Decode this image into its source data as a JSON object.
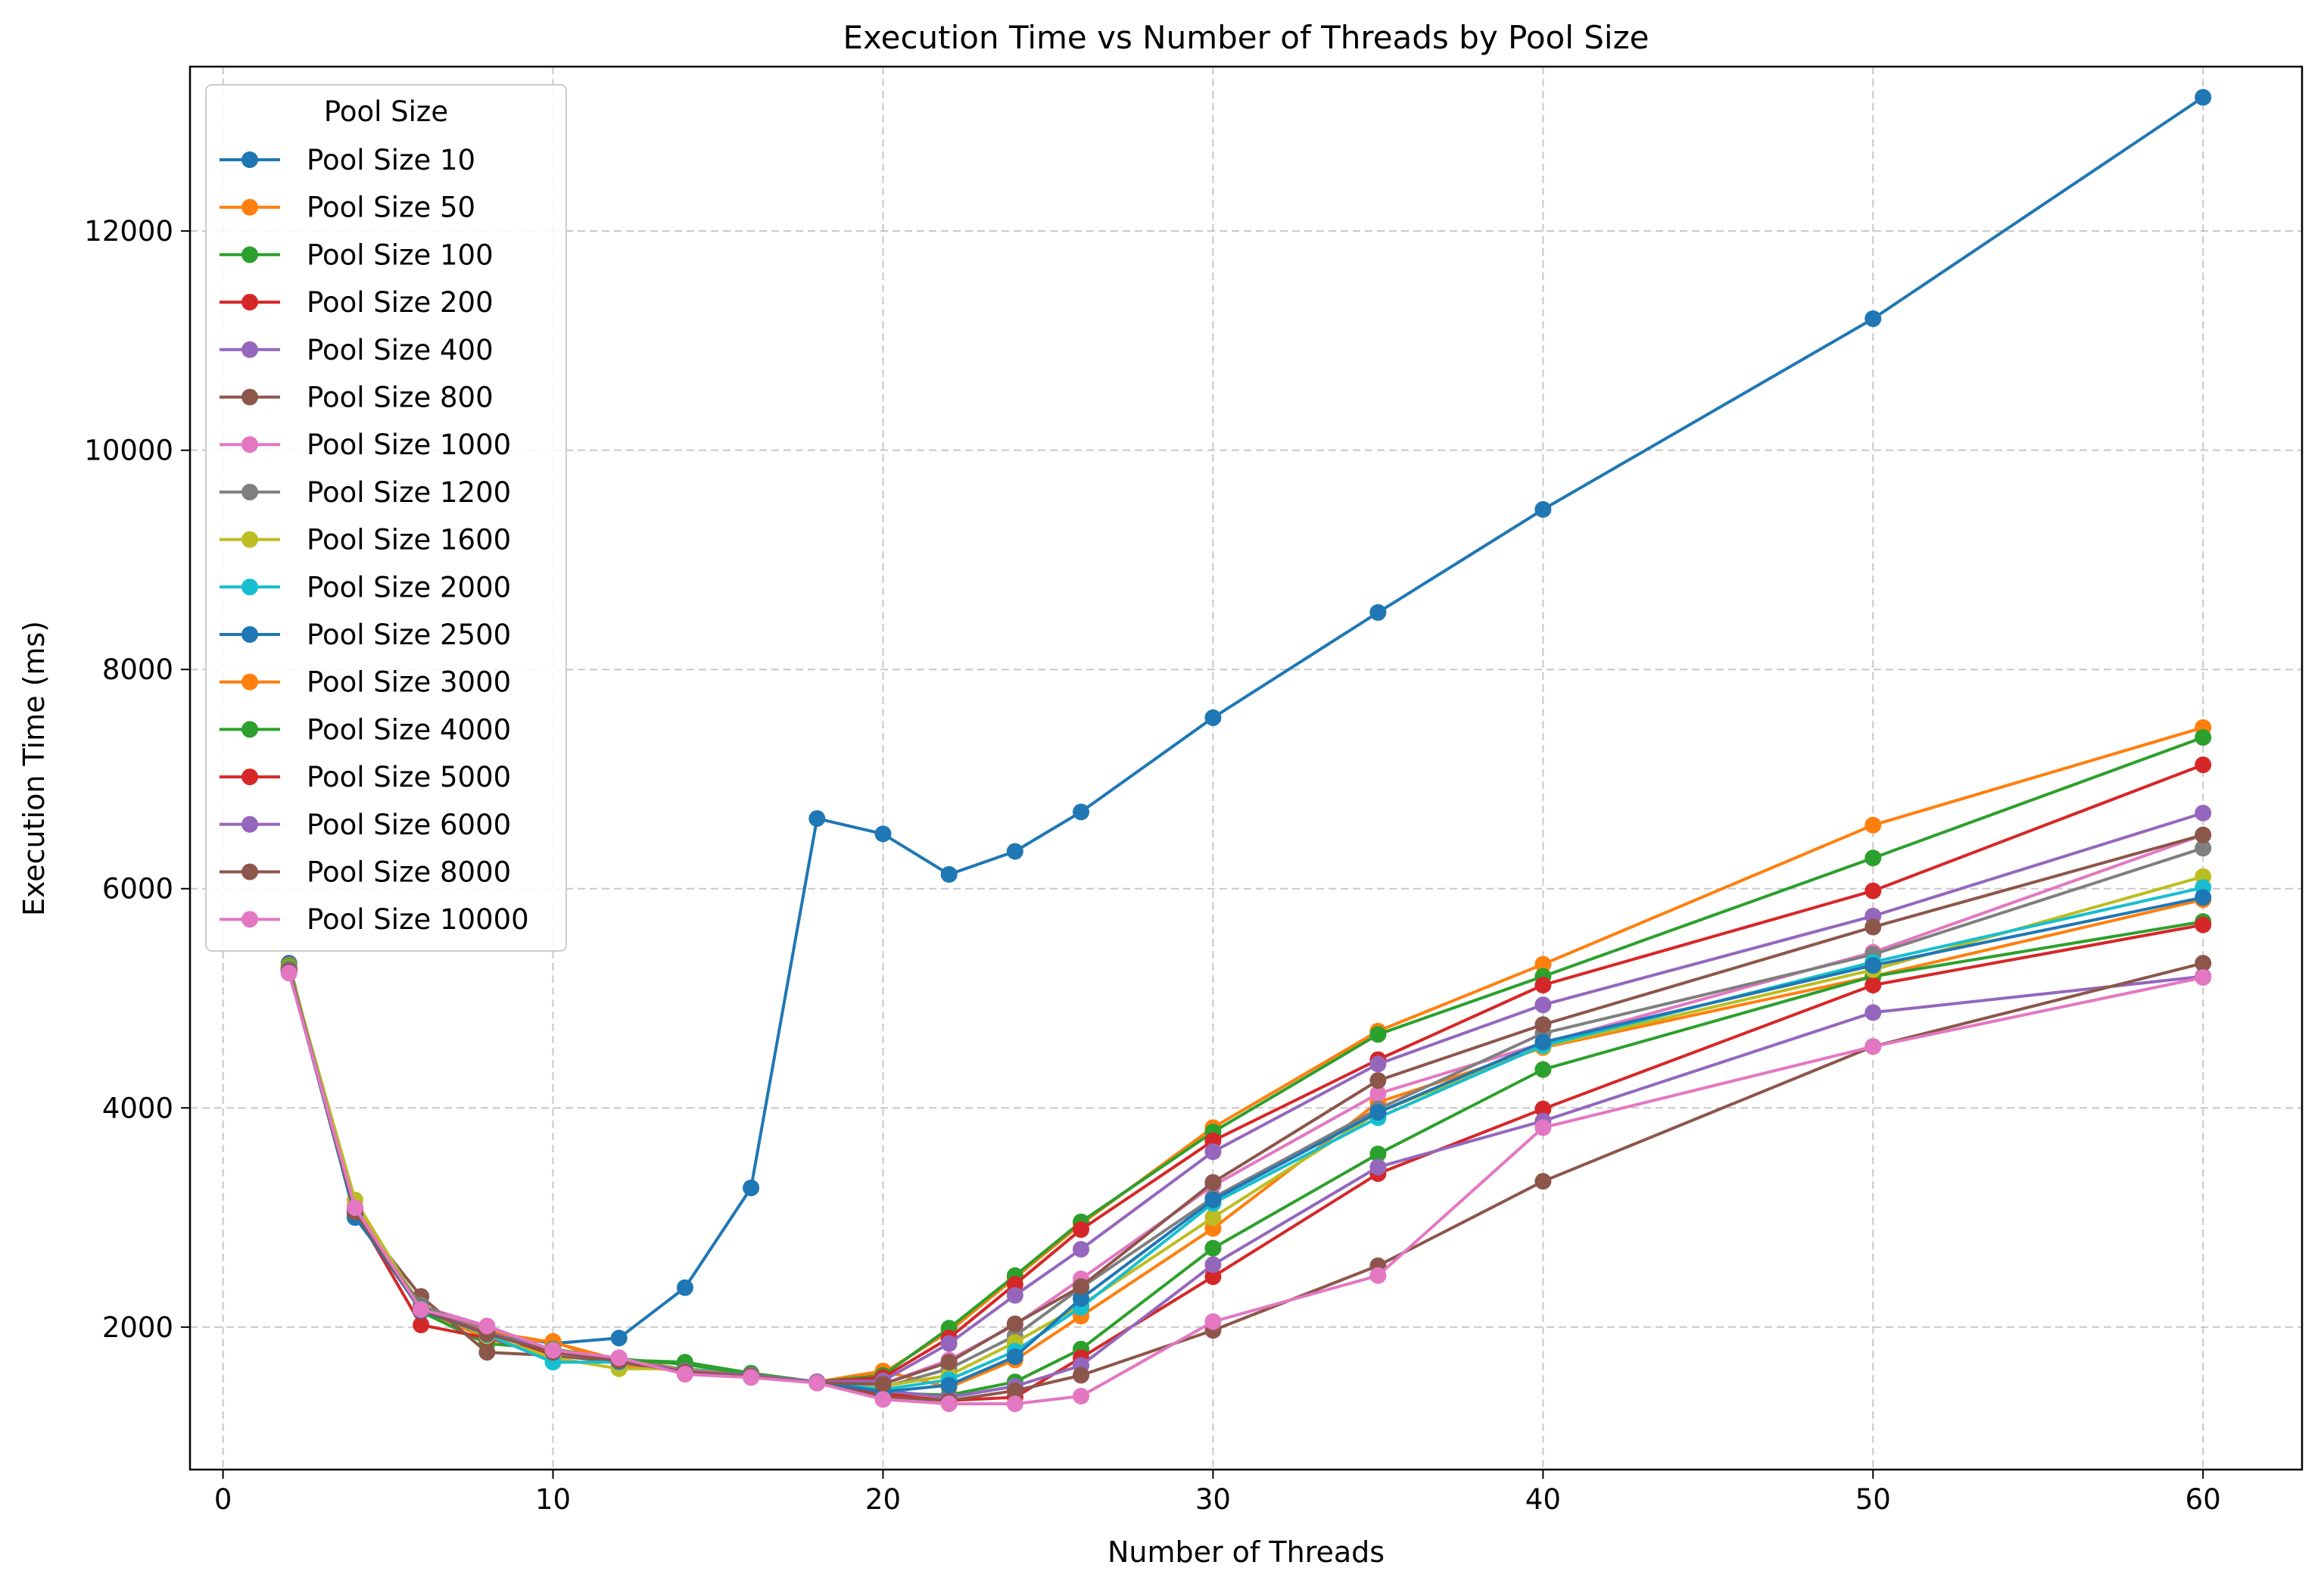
{
  "chart_data": {
    "type": "line",
    "title": "Execution Time vs Number of Threads by Pool Size",
    "xlabel": "Number of Threads",
    "ylabel": "Execution Time (ms)",
    "xlim": [
      -1,
      63
    ],
    "ylim": [
      700,
      13500
    ],
    "xticks": [
      0,
      10,
      20,
      30,
      40,
      50,
      60
    ],
    "yticks": [
      2000,
      4000,
      6000,
      8000,
      10000,
      12000
    ],
    "grid": true,
    "legend": {
      "title": "Pool Size",
      "placement": "top-left"
    },
    "x": [
      2,
      4,
      6,
      8,
      10,
      12,
      14,
      16,
      18,
      20,
      22,
      24,
      26,
      30,
      35,
      40,
      50,
      60
    ],
    "series": [
      {
        "name": "Pool Size 10",
        "color": "#1f77b4",
        "values": [
          5320,
          3000,
          2200,
          1950,
          1850,
          1900,
          2360,
          3270,
          6640,
          6500,
          6130,
          6340,
          6700,
          7560,
          8520,
          9460,
          11200,
          13220
        ]
      },
      {
        "name": "Pool Size 50",
        "color": "#ff7f0e",
        "values": [
          5300,
          3100,
          2150,
          1900,
          1870,
          1650,
          1600,
          1560,
          1500,
          1600,
          1450,
          1700,
          2100,
          2900,
          4050,
          4550,
          5200,
          5900
        ]
      },
      {
        "name": "Pool Size 100",
        "color": "#2ca02c",
        "values": [
          5290,
          3080,
          2140,
          1850,
          1800,
          1700,
          1680,
          1580,
          1500,
          1400,
          1380,
          1500,
          1800,
          2720,
          3580,
          4350,
          5200,
          5700
        ]
      },
      {
        "name": "Pool Size 200",
        "color": "#d62728",
        "values": [
          5270,
          3060,
          2020,
          1900,
          1750,
          1690,
          1600,
          1560,
          1500,
          1390,
          1330,
          1360,
          1720,
          2460,
          3400,
          3990,
          5120,
          5670
        ]
      },
      {
        "name": "Pool Size 400",
        "color": "#9467bd",
        "values": [
          5280,
          3050,
          2180,
          1980,
          1780,
          1720,
          1610,
          1570,
          1500,
          1420,
          1360,
          1460,
          1650,
          2570,
          3460,
          3880,
          4870,
          5200
        ]
      },
      {
        "name": "Pool Size 800",
        "color": "#8c564b",
        "values": [
          5260,
          3040,
          2280,
          1770,
          1740,
          1680,
          1590,
          1550,
          1490,
          1360,
          1330,
          1420,
          1560,
          1970,
          2560,
          3330,
          4560,
          5320
        ]
      },
      {
        "name": "Pool Size 1000",
        "color": "#e377c2",
        "values": [
          5250,
          3070,
          2190,
          2010,
          1760,
          1700,
          1600,
          1560,
          1500,
          1480,
          1700,
          2020,
          2440,
          3290,
          4130,
          4590,
          5420,
          6490
        ]
      },
      {
        "name": "Pool Size 1200",
        "color": "#7f7f7f",
        "values": [
          5270,
          3080,
          2200,
          1960,
          1790,
          1710,
          1610,
          1570,
          1500,
          1450,
          1620,
          1920,
          2360,
          3180,
          3990,
          4680,
          5400,
          6370
        ]
      },
      {
        "name": "Pool Size 1600",
        "color": "#bcbd22",
        "values": [
          5280,
          3160,
          2170,
          1920,
          1720,
          1620,
          1620,
          1570,
          1500,
          1460,
          1560,
          1860,
          2200,
          3000,
          3960,
          4560,
          5260,
          6110
        ]
      },
      {
        "name": "Pool Size 2000",
        "color": "#17becf",
        "values": [
          5260,
          3050,
          2160,
          1930,
          1680,
          1680,
          1620,
          1560,
          1500,
          1430,
          1520,
          1780,
          2180,
          3130,
          3910,
          4570,
          5330,
          6010
        ]
      },
      {
        "name": "Pool Size 2500",
        "color": "#1f77b4",
        "values": [
          5250,
          3020,
          2150,
          1940,
          1770,
          1690,
          1600,
          1560,
          1500,
          1410,
          1470,
          1730,
          2260,
          3160,
          3960,
          4600,
          5300,
          5920
        ]
      },
      {
        "name": "Pool Size 3000",
        "color": "#ff7f0e",
        "values": [
          5260,
          3060,
          2170,
          1960,
          1860,
          1700,
          1610,
          1560,
          1500,
          1580,
          1960,
          2450,
          2940,
          3820,
          4700,
          5310,
          6580,
          7470
        ]
      },
      {
        "name": "Pool Size 4000",
        "color": "#2ca02c",
        "values": [
          5270,
          3070,
          2180,
          1950,
          1800,
          1710,
          1660,
          1570,
          1500,
          1560,
          1990,
          2470,
          2960,
          3780,
          4670,
          5200,
          6280,
          7380
        ]
      },
      {
        "name": "Pool Size 5000",
        "color": "#d62728",
        "values": [
          5250,
          3060,
          2160,
          1940,
          1780,
          1700,
          1600,
          1560,
          1500,
          1540,
          1900,
          2390,
          2890,
          3700,
          4440,
          5120,
          5980,
          7130
        ]
      },
      {
        "name": "Pool Size 6000",
        "color": "#9467bd",
        "values": [
          5260,
          3070,
          2170,
          1950,
          1790,
          1700,
          1600,
          1560,
          1500,
          1510,
          1850,
          2290,
          2710,
          3600,
          4400,
          4940,
          5750,
          6690
        ]
      },
      {
        "name": "Pool Size 8000",
        "color": "#8c564b",
        "values": [
          5250,
          3050,
          2160,
          1940,
          1770,
          1690,
          1590,
          1550,
          1490,
          1480,
          1680,
          2030,
          2370,
          3320,
          4250,
          4760,
          5650,
          6490
        ]
      },
      {
        "name": "Pool Size 10000",
        "color": "#e377c2",
        "values": [
          5230,
          3090,
          2160,
          2010,
          1790,
          1720,
          1570,
          1540,
          1490,
          1340,
          1300,
          1300,
          1370,
          2050,
          2470,
          3820,
          4560,
          5190
        ]
      }
    ]
  }
}
